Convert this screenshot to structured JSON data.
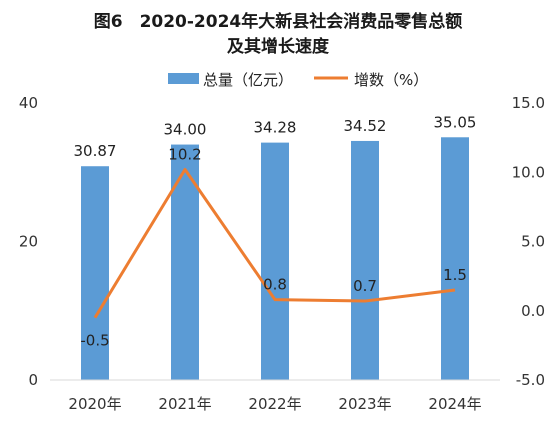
{
  "chart_data": {
    "type": "bar",
    "title_line1": "图6　2020-2024年大新县社会消费品零售总额",
    "title_line2": "及其增长速度",
    "categories": [
      "2020年",
      "2021年",
      "2022年",
      "2023年",
      "2024年"
    ],
    "series": [
      {
        "name": "总量（亿元）",
        "type": "bar",
        "axis": "left",
        "color": "#5b9bd5",
        "values": [
          30.87,
          34.0,
          34.28,
          34.52,
          35.05
        ],
        "labels": [
          "30.87",
          "34.00",
          "34.28",
          "34.52",
          "35.05"
        ]
      },
      {
        "name": "增数（%）",
        "type": "line",
        "axis": "right",
        "color": "#ed7d31",
        "values": [
          -0.5,
          10.2,
          0.8,
          0.7,
          1.5
        ],
        "labels": [
          "-0.5",
          "10.2",
          "0.8",
          "0.7",
          "1.5"
        ]
      }
    ],
    "y_left": {
      "min": 0,
      "max": 40,
      "ticks": [
        0,
        20,
        40
      ],
      "tick_labels": [
        "0",
        "20",
        "40"
      ]
    },
    "y_right": {
      "min": -5,
      "max": 15,
      "ticks": [
        -5,
        0,
        5,
        10,
        15
      ],
      "tick_labels": [
        "-5.0",
        "0.0",
        "5.0",
        "10.0",
        "15.0"
      ]
    },
    "legend_position": "top",
    "grid": false
  }
}
